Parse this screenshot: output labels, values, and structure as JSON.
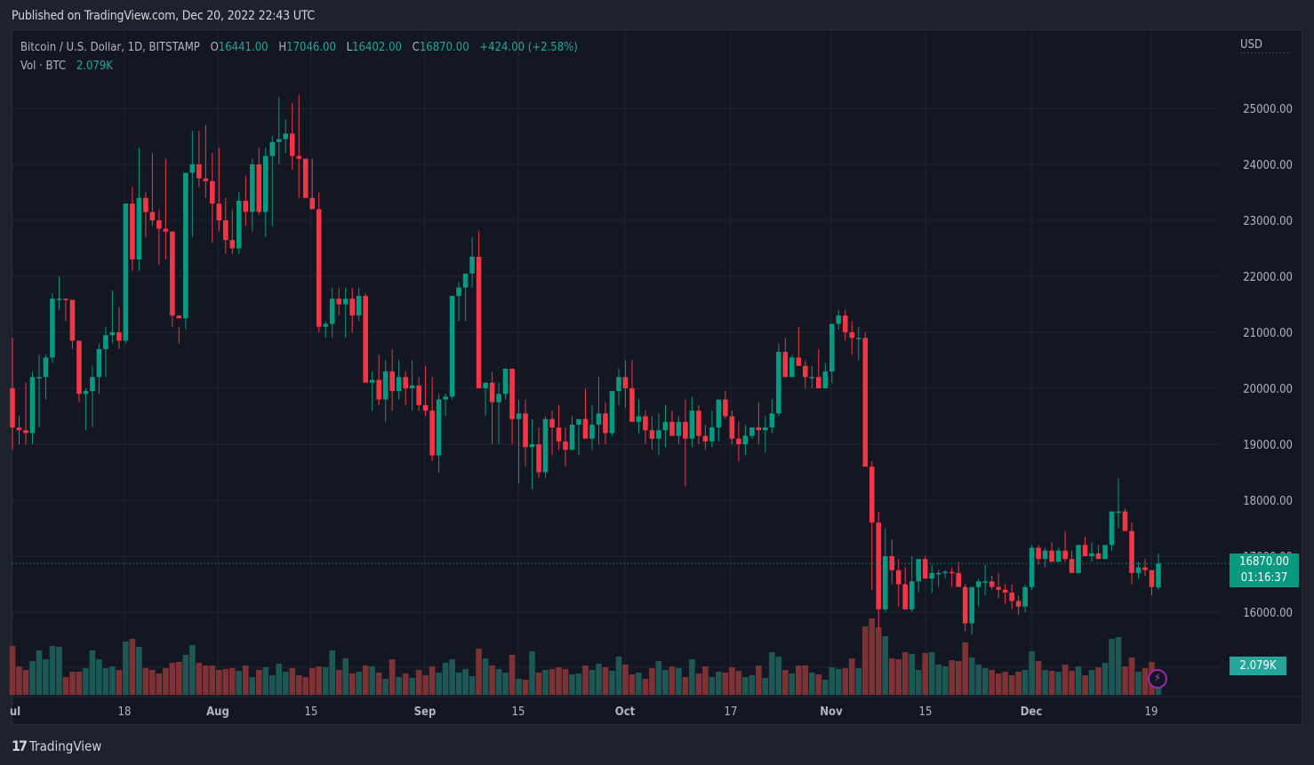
{
  "header": {
    "published": "Published on TradingView.com, Dec 20, 2022 22:43 UTC"
  },
  "legend": {
    "symbol": "Bitcoin / U.S. Dollar, 1D, BITSTAMP",
    "o_label": "O",
    "o": "16441.00",
    "h_label": "H",
    "h": "17046.00",
    "l_label": "L",
    "l": "16402.00",
    "c_label": "C",
    "c": "16870.00",
    "change": "+424.00 (+2.58%)",
    "vol_label": "Vol · BTC",
    "vol": "2.079K"
  },
  "axis": {
    "currency": "USD",
    "price_ticks": [
      "25000.00",
      "24000.00",
      "23000.00",
      "22000.00",
      "21000.00",
      "20000.00",
      "19000.00",
      "18000.00",
      "17000.00",
      "16000.00"
    ],
    "time_ticks": [
      {
        "label": "ul",
        "x": 17,
        "bold": true
      },
      {
        "label": "18",
        "x": 140,
        "bold": false
      },
      {
        "label": "Aug",
        "x": 245,
        "bold": true
      },
      {
        "label": "15",
        "x": 350,
        "bold": false
      },
      {
        "label": "Sep",
        "x": 478,
        "bold": true
      },
      {
        "label": "15",
        "x": 583,
        "bold": false
      },
      {
        "label": "Oct",
        "x": 703,
        "bold": true
      },
      {
        "label": "17",
        "x": 822,
        "bold": false
      },
      {
        "label": "Nov",
        "x": 935,
        "bold": true
      },
      {
        "label": "15",
        "x": 1041,
        "bold": false
      },
      {
        "label": "Dec",
        "x": 1160,
        "bold": true
      },
      {
        "label": "19",
        "x": 1295,
        "bold": false
      }
    ]
  },
  "last_price": {
    "price": "16870.00",
    "countdown": "01:16:37"
  },
  "volume_tag": "2.079K",
  "footer": {
    "brand": "TradingView",
    "logo": "17"
  },
  "colors": {
    "up": "#089981",
    "down": "#f23645",
    "vol_up": "#1f5f5b",
    "vol_down": "#8a3539",
    "grid": "#232632",
    "bg": "#131722"
  },
  "chart_data": {
    "type": "candlestick",
    "title": "Bitcoin / U.S. Dollar, 1D, BITSTAMP",
    "ylabel": "USD",
    "ylim": [
      15200,
      26300
    ],
    "x_range": [
      "2022-07-01",
      "2022-12-20"
    ],
    "grid": true,
    "fields": [
      "open",
      "high",
      "low",
      "close",
      "volume"
    ],
    "candles": [
      [
        20000,
        20900,
        18900,
        19300,
        5.5
      ],
      [
        19300,
        19500,
        19000,
        19250,
        3.2
      ],
      [
        19250,
        20100,
        19000,
        19200,
        2.8
      ],
      [
        19200,
        20300,
        19000,
        20200,
        3.8
      ],
      [
        20200,
        20600,
        19300,
        20200,
        5.0
      ],
      [
        20200,
        20600,
        19800,
        20550,
        4.0
      ],
      [
        20550,
        21700,
        20450,
        21600,
        5.5
      ],
      [
        21600,
        22000,
        21400,
        21600,
        5.4
      ],
      [
        21600,
        21600,
        21200,
        21580,
        2.0
      ],
      [
        21580,
        21450,
        20700,
        20850,
        2.6
      ],
      [
        20850,
        20800,
        19750,
        19900,
        2.6
      ],
      [
        19900,
        20000,
        19250,
        19950,
        3.0
      ],
      [
        19950,
        20400,
        19300,
        20200,
        5.0
      ],
      [
        20200,
        20800,
        19900,
        20700,
        4.0
      ],
      [
        20700,
        21100,
        20200,
        20950,
        3.0
      ],
      [
        20950,
        21750,
        20800,
        21000,
        3.2
      ],
      [
        21000,
        21450,
        20700,
        20850,
        2.8
      ],
      [
        20850,
        23000,
        20800,
        23300,
        6.0
      ],
      [
        23300,
        23600,
        22100,
        22300,
        6.3
      ],
      [
        22300,
        24300,
        22100,
        23400,
        5.4
      ],
      [
        23400,
        23500,
        22700,
        23150,
        3.0
      ],
      [
        23150,
        24200,
        22900,
        23000,
        2.8
      ],
      [
        23000,
        23200,
        22200,
        22850,
        2.4
      ],
      [
        22850,
        24100,
        22300,
        22800,
        3.0
      ],
      [
        22800,
        22800,
        21100,
        21300,
        3.6
      ],
      [
        21300,
        21100,
        20800,
        21250,
        3.7
      ],
      [
        21250,
        23600,
        21050,
        23850,
        4.5
      ],
      [
        23850,
        24600,
        22700,
        24000,
        5.6
      ],
      [
        24000,
        24600,
        23600,
        23750,
        3.6
      ],
      [
        23750,
        24700,
        23400,
        23700,
        3.3
      ],
      [
        23700,
        24200,
        22600,
        23300,
        3.3
      ],
      [
        23300,
        24300,
        22800,
        23000,
        2.8
      ],
      [
        23000,
        23400,
        22400,
        22650,
        2.9
      ],
      [
        22650,
        23200,
        22400,
        22500,
        3.0
      ],
      [
        22500,
        23500,
        22400,
        23350,
        2.7
      ],
      [
        23350,
        23800,
        22900,
        23150,
        3.3
      ],
      [
        23150,
        24100,
        22800,
        24000,
        2.0
      ],
      [
        24000,
        24300,
        23100,
        23150,
        2.8
      ],
      [
        23150,
        24300,
        22700,
        24150,
        3.1
      ],
      [
        24150,
        24500,
        22900,
        24400,
        2.2
      ],
      [
        24400,
        25200,
        24000,
        24450,
        3.5
      ],
      [
        24450,
        24800,
        24200,
        24550,
        2.6
      ],
      [
        24550,
        25100,
        23900,
        24150,
        3.0
      ],
      [
        24150,
        25250,
        23400,
        24100,
        2.2
      ],
      [
        24100,
        24100,
        23400,
        23400,
        2.0
      ],
      [
        23400,
        24100,
        23200,
        23200,
        3.0
      ],
      [
        23200,
        23500,
        21000,
        21100,
        3.2
      ],
      [
        21100,
        21200,
        20900,
        21150,
        3.1
      ],
      [
        21150,
        21800,
        20900,
        21600,
        5.0
      ],
      [
        21600,
        21800,
        21300,
        21500,
        2.8
      ],
      [
        21500,
        21800,
        20900,
        21600,
        4.1
      ],
      [
        21600,
        21800,
        21000,
        21300,
        2.4
      ],
      [
        21300,
        21800,
        21200,
        21650,
        2.6
      ],
      [
        21650,
        21700,
        20100,
        20100,
        3.3
      ],
      [
        20100,
        20300,
        19600,
        20150,
        3.2
      ],
      [
        20150,
        20600,
        19700,
        19800,
        2.5
      ],
      [
        19800,
        20500,
        19400,
        20300,
        1.8
      ],
      [
        20300,
        20700,
        19600,
        19950,
        4.0
      ],
      [
        19950,
        20500,
        19800,
        20200,
        2.0
      ],
      [
        20200,
        20300,
        19700,
        20000,
        2.4
      ],
      [
        20000,
        20500,
        19600,
        20050,
        1.9
      ],
      [
        20050,
        20200,
        19600,
        19700,
        2.8
      ],
      [
        19700,
        20400,
        19500,
        19600,
        2.2
      ],
      [
        19600,
        20200,
        18700,
        18800,
        3.2
      ],
      [
        18800,
        19900,
        18500,
        19800,
        2.5
      ],
      [
        19800,
        19900,
        19500,
        19850,
        3.6
      ],
      [
        19850,
        21600,
        19800,
        21650,
        4.0
      ],
      [
        21650,
        21900,
        21200,
        21800,
        2.5
      ],
      [
        21800,
        22000,
        21200,
        22050,
        2.9
      ],
      [
        22050,
        22700,
        21800,
        22350,
        2.1
      ],
      [
        22350,
        22800,
        21500,
        20000,
        5.2
      ],
      [
        20000,
        20100,
        19500,
        20100,
        4.1
      ],
      [
        20100,
        20300,
        19000,
        19750,
        3.3
      ],
      [
        19750,
        20100,
        19000,
        19900,
        2.9
      ],
      [
        19900,
        20300,
        19800,
        20350,
        2.5
      ],
      [
        20350,
        20300,
        19000,
        19450,
        4.5
      ],
      [
        19450,
        19800,
        18300,
        19550,
        1.8
      ],
      [
        19550,
        19800,
        18600,
        18950,
        1.7
      ],
      [
        18950,
        19450,
        18200,
        19000,
        4.9
      ],
      [
        19000,
        19300,
        18400,
        18500,
        2.5
      ],
      [
        18500,
        19500,
        18400,
        19450,
        2.8
      ],
      [
        19450,
        19600,
        18800,
        19300,
        2.9
      ],
      [
        19300,
        19700,
        18900,
        19050,
        3.1
      ],
      [
        19050,
        19300,
        18600,
        18900,
        2.9
      ],
      [
        18900,
        19500,
        18900,
        19350,
        2.3
      ],
      [
        19350,
        19400,
        18800,
        19450,
        2.4
      ],
      [
        19450,
        20000,
        19350,
        19100,
        3.3
      ],
      [
        19100,
        19700,
        18900,
        19350,
        2.8
      ],
      [
        19350,
        20200,
        19000,
        19550,
        3.5
      ],
      [
        19550,
        19750,
        19000,
        19200,
        3.1
      ],
      [
        19200,
        19600,
        19150,
        19950,
        2.7
      ],
      [
        19950,
        20350,
        19700,
        20200,
        4.3
      ],
      [
        20200,
        20500,
        19650,
        20000,
        3.4
      ],
      [
        20000,
        20500,
        19800,
        19400,
        2.3
      ],
      [
        19400,
        19800,
        19200,
        19500,
        2.5
      ],
      [
        19500,
        19600,
        19000,
        19250,
        1.8
      ],
      [
        19250,
        19500,
        18900,
        19100,
        3.0
      ],
      [
        19100,
        19550,
        18800,
        19250,
        3.8
      ],
      [
        19250,
        19700,
        18950,
        19400,
        2.8
      ],
      [
        19400,
        19600,
        19150,
        19150,
        3.2
      ],
      [
        19150,
        19500,
        19000,
        19400,
        3.0
      ],
      [
        19400,
        19800,
        18250,
        19100,
        2.0
      ],
      [
        19100,
        19850,
        18950,
        19600,
        4.0
      ],
      [
        19600,
        19700,
        19000,
        19150,
        2.4
      ],
      [
        19150,
        19350,
        18900,
        19050,
        3.2
      ],
      [
        19050,
        19600,
        18950,
        19300,
        2.0
      ],
      [
        19300,
        19750,
        19050,
        19800,
        2.6
      ],
      [
        19800,
        19950,
        19450,
        19500,
        2.5
      ],
      [
        19500,
        19600,
        19000,
        19100,
        3.1
      ],
      [
        19100,
        19400,
        18700,
        19000,
        2.7
      ],
      [
        19000,
        19350,
        18800,
        19150,
        2.0
      ],
      [
        19150,
        19300,
        19100,
        19300,
        2.2
      ],
      [
        19300,
        19750,
        19000,
        19250,
        3.3
      ],
      [
        19250,
        19500,
        18850,
        19300,
        1.9
      ],
      [
        19300,
        19800,
        19200,
        19550,
        4.8
      ],
      [
        19550,
        20800,
        19500,
        20650,
        4.3
      ],
      [
        20650,
        20900,
        20300,
        20200,
        2.8
      ],
      [
        20200,
        20600,
        20200,
        20550,
        2.4
      ],
      [
        20550,
        21100,
        20500,
        20400,
        3.3
      ],
      [
        20400,
        20500,
        20000,
        20200,
        3.3
      ],
      [
        20200,
        20400,
        20000,
        20200,
        2.5
      ],
      [
        20200,
        20700,
        20000,
        20000,
        2.3
      ],
      [
        20000,
        20450,
        20000,
        20300,
        1.7
      ],
      [
        20300,
        20800,
        20100,
        21150,
        3.1
      ],
      [
        21150,
        21400,
        21050,
        21300,
        2.9
      ],
      [
        21300,
        21400,
        20850,
        21000,
        3.0
      ],
      [
        21000,
        21200,
        20600,
        20900,
        4.1
      ],
      [
        20900,
        21100,
        20500,
        20900,
        3.0
      ],
      [
        20900,
        21000,
        18700,
        18600,
        7.7
      ],
      [
        18600,
        18700,
        16400,
        17600,
        8.6
      ],
      [
        17600,
        17800,
        15700,
        16050,
        7.6
      ],
      [
        16050,
        17500,
        16000,
        17000,
        6.6
      ],
      [
        17000,
        17300,
        16500,
        16750,
        4.1
      ],
      [
        16750,
        16950,
        16100,
        16500,
        4.0
      ],
      [
        16500,
        16800,
        16300,
        16050,
        4.8
      ],
      [
        16050,
        17000,
        16000,
        16550,
        4.6
      ],
      [
        16550,
        16800,
        16350,
        16950,
        2.8
      ],
      [
        16950,
        17000,
        16650,
        16600,
        4.7
      ],
      [
        16600,
        16850,
        16350,
        16700,
        4.8
      ],
      [
        16700,
        16750,
        16450,
        16700,
        3.4
      ],
      [
        16700,
        16750,
        16600,
        16720,
        3.2
      ],
      [
        16720,
        16800,
        16450,
        16700,
        3.9
      ],
      [
        16700,
        16900,
        16500,
        16450,
        3.8
      ],
      [
        16450,
        16500,
        15650,
        15800,
        5.9
      ],
      [
        15800,
        16400,
        15600,
        16450,
        4.2
      ],
      [
        16450,
        16600,
        16100,
        16550,
        3.4
      ],
      [
        16550,
        16850,
        16300,
        16550,
        3.0
      ],
      [
        16550,
        16650,
        16400,
        16450,
        2.8
      ],
      [
        16450,
        16700,
        16250,
        16400,
        2.4
      ],
      [
        16400,
        16500,
        16150,
        16350,
        2.6
      ],
      [
        16350,
        16500,
        16050,
        16200,
        2.2
      ],
      [
        16200,
        16300,
        15950,
        16100,
        2.6
      ],
      [
        16100,
        16500,
        16000,
        16450,
        2.8
      ],
      [
        16450,
        17200,
        16400,
        17150,
        4.9
      ],
      [
        17150,
        17200,
        16850,
        16950,
        3.8
      ],
      [
        16950,
        17150,
        16800,
        17100,
        2.8
      ],
      [
        17100,
        17250,
        16900,
        16900,
        2.7
      ],
      [
        16900,
        17150,
        16900,
        17100,
        2.6
      ],
      [
        17100,
        17450,
        16900,
        16950,
        3.4
      ],
      [
        16950,
        17100,
        16800,
        16700,
        2.7
      ],
      [
        16700,
        17200,
        16750,
        17200,
        3.2
      ],
      [
        17200,
        17350,
        17050,
        17000,
        2.2
      ],
      [
        17000,
        17250,
        16900,
        17050,
        2.8
      ],
      [
        17050,
        17200,
        17000,
        16950,
        3.1
      ],
      [
        16950,
        17200,
        17000,
        17200,
        3.6
      ],
      [
        17200,
        17750,
        17100,
        17800,
        6.3
      ],
      [
        17800,
        18400,
        17500,
        17800,
        6.5
      ],
      [
        17800,
        17850,
        17500,
        17450,
        3.2
      ],
      [
        17450,
        17600,
        16500,
        16700,
        4.2
      ],
      [
        16700,
        16900,
        16600,
        16800,
        2.6
      ],
      [
        16800,
        16950,
        16650,
        16750,
        3.0
      ],
      [
        16750,
        16750,
        16300,
        16450,
        3.7
      ],
      [
        16441,
        17046,
        16402,
        16870,
        2.079
      ]
    ],
    "last_close": 16870.0,
    "last_volume": "2.079K"
  }
}
